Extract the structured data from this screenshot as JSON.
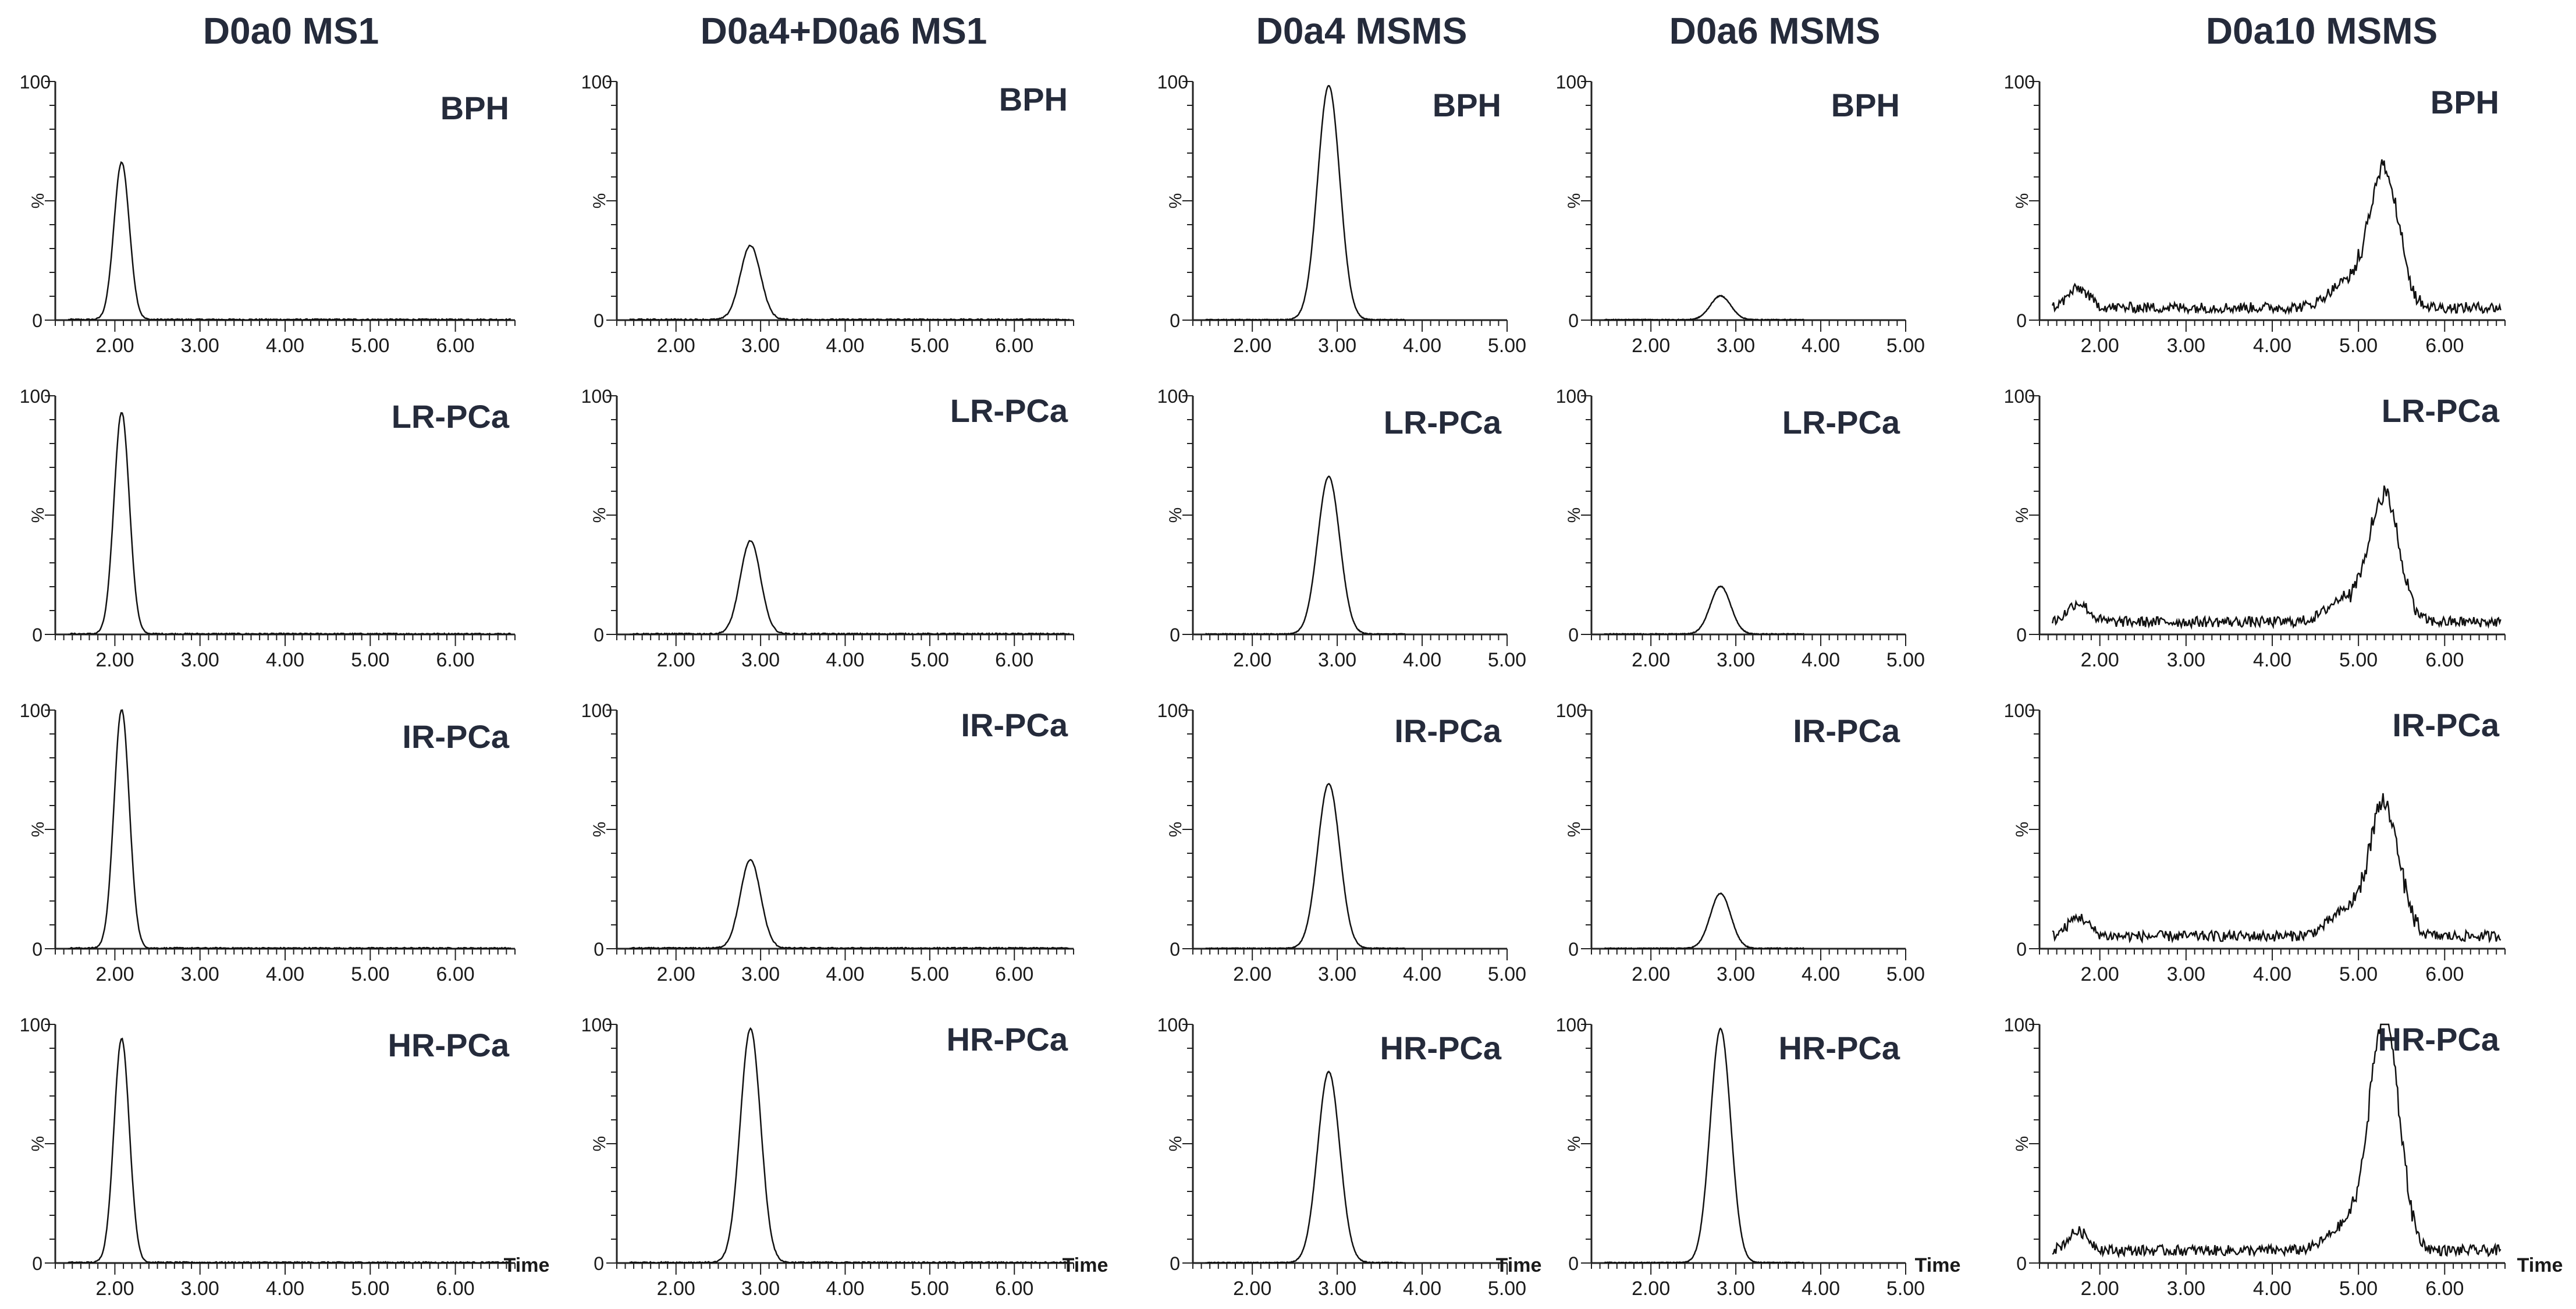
{
  "columns": [
    {
      "title": "D0a0 MS1",
      "x_ticks": [
        "2.00",
        "3.00",
        "4.00",
        "5.00",
        "6.00"
      ],
      "x_range": [
        1.3,
        6.7
      ],
      "peak_time": 2.08,
      "peak_width": 0.09
    },
    {
      "title": "D0a4+D0a6 MS1",
      "x_ticks": [
        "2.00",
        "3.00",
        "4.00",
        "5.00",
        "6.00"
      ],
      "x_range": [
        1.3,
        6.7
      ],
      "peak_time": 2.88,
      "peak_width": 0.12
    },
    {
      "title": "D0a4 MSMS",
      "x_ticks": [
        "2.00",
        "3.00",
        "4.00",
        "5.00"
      ],
      "x_range": [
        1.3,
        5.0
      ],
      "peak_time": 2.9,
      "peak_width": 0.13
    },
    {
      "title": "D0a6 MSMS",
      "x_ticks": [
        "2.00",
        "3.00",
        "4.00",
        "5.00"
      ],
      "x_range": [
        1.3,
        5.0
      ],
      "peak_time": 2.82,
      "peak_width": 0.12
    },
    {
      "title": "D0a10 MSMS",
      "x_ticks": [
        "2.00",
        "3.00",
        "4.00",
        "5.00",
        "6.00"
      ],
      "x_range": [
        1.3,
        6.7
      ],
      "peak_time": 5.3,
      "peak_width": 0.17
    }
  ],
  "rows": [
    "BPH",
    "LR-PCa",
    "IR-PCa",
    "HR-PCa"
  ],
  "y_axis": {
    "label": "%",
    "ticks": [
      "0",
      "100"
    ]
  },
  "x_axis_label": "Time",
  "chart_data": {
    "type": "line",
    "description": "LC-MS chromatograms; relative intensity (%) vs retention time (min)",
    "ylim": [
      0,
      100
    ],
    "ylabel": "%",
    "xlabel": "Time",
    "peak_heights": {
      "D0a0 MS1": {
        "BPH": 66,
        "LR-PCa": 93,
        "IR-PCa": 100,
        "HR-PCa": 94
      },
      "D0a4+D0a6 MS1": {
        "BPH": 31,
        "LR-PCa": 39,
        "IR-PCa": 37,
        "HR-PCa": 98
      },
      "D0a4 MSMS": {
        "BPH": 98,
        "LR-PCa": 66,
        "IR-PCa": 69,
        "HR-PCa": 80
      },
      "D0a6 MSMS": {
        "BPH": 10,
        "LR-PCa": 20,
        "IR-PCa": 23,
        "HR-PCa": 98
      },
      "D0a10 MSMS": {
        "BPH": 58,
        "LR-PCa": 53,
        "IR-PCa": 55,
        "HR-PCa": 98
      }
    },
    "baseline_noise": {
      "D0a0 MS1": 0.5,
      "D0a4+D0a6 MS1": 0.5,
      "D0a4 MSMS": 0.3,
      "D0a6 MSMS": 0.3,
      "D0a10 MSMS": 5
    }
  },
  "colors": {
    "title": "#252b3b",
    "label": "#1a1a1a",
    "line": "#111111"
  }
}
